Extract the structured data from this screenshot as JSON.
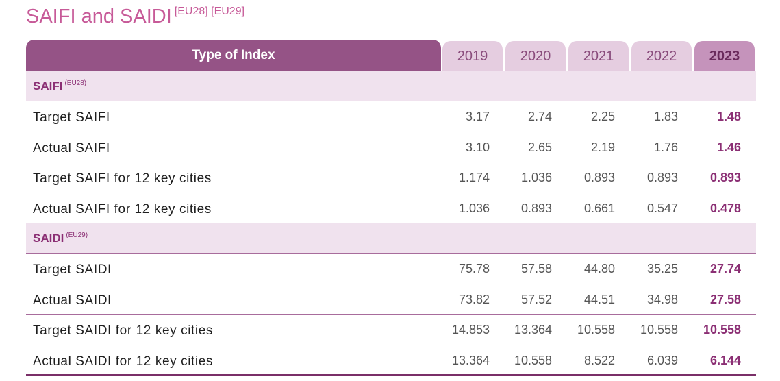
{
  "title": {
    "main": "SAIFI and SAIDI",
    "refs": "[EU28] [EU29]"
  },
  "table": {
    "header": {
      "type_label": "Type of Index",
      "years": [
        "2019",
        "2020",
        "2021",
        "2022",
        "2023"
      ]
    },
    "sections": [
      {
        "label": "SAIFI",
        "ref": "(EU28)",
        "rows": [
          {
            "label": "Target SAIFI",
            "values": [
              "3.17",
              "2.74",
              "2.25",
              "1.83",
              "1.48"
            ]
          },
          {
            "label": "Actual SAIFI",
            "values": [
              "3.10",
              "2.65",
              "2.19",
              "1.76",
              "1.46"
            ]
          },
          {
            "label": "Target SAIFI for 12 key cities",
            "values": [
              "1.174",
              "1.036",
              "0.893",
              "0.893",
              "0.893"
            ]
          },
          {
            "label": "Actual SAIFI for 12 key cities",
            "values": [
              "1.036",
              "0.893",
              "0.661",
              "0.547",
              "0.478"
            ]
          }
        ]
      },
      {
        "label": "SAIDI",
        "ref": "(EU29)",
        "rows": [
          {
            "label": "Target SAIDI",
            "values": [
              "75.78",
              "57.58",
              "44.80",
              "35.25",
              "27.74"
            ]
          },
          {
            "label": "Actual SAIDI",
            "values": [
              "73.82",
              "57.52",
              "44.51",
              "34.98",
              "27.58"
            ]
          },
          {
            "label": "Target SAIDI for 12 key cities",
            "values": [
              "14.853",
              "13.364",
              "10.558",
              "10.558",
              "10.558"
            ]
          },
          {
            "label": "Actual SAIDI for 12 key cities",
            "values": [
              "13.364",
              "10.558",
              "8.522",
              "6.039",
              "6.144"
            ]
          }
        ]
      }
    ]
  },
  "colors": {
    "title": "#c75a98",
    "header_type_bg": "#955386",
    "header_year_bg": "#e5cde0",
    "header_current_year_bg": "#c593bb",
    "section_bg": "#f0e2ee",
    "section_text": "#8b2f74",
    "current_value_text": "#8b2f74"
  }
}
